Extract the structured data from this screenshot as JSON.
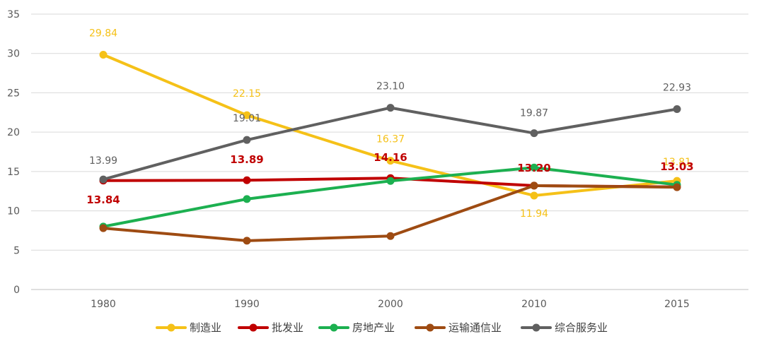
{
  "chart_data": {
    "type": "line",
    "title": "",
    "xlabel": "",
    "ylabel": "",
    "categories": [
      "1980",
      "1990",
      "2000",
      "2010",
      "2015"
    ],
    "ylim": [
      0,
      35
    ],
    "yticks": [
      0,
      5,
      10,
      15,
      20,
      25,
      30,
      35
    ],
    "grid": true,
    "legend_position": "bottom",
    "series": [
      {
        "name": "制造业",
        "color": "#F5C118",
        "values": [
          29.84,
          22.15,
          16.37,
          11.94,
          13.81
        ],
        "labels": [
          "29.84",
          "22.15",
          "16.37",
          "11.94",
          "13.81"
        ],
        "label_indices": [
          0,
          1,
          2,
          3,
          4
        ],
        "label_bold": false
      },
      {
        "name": "批发业",
        "color": "#C00000",
        "values": [
          13.84,
          13.89,
          14.16,
          13.2,
          13.03
        ],
        "labels": [
          "13.84",
          "13.89",
          "14.16",
          "13.20",
          "13.03"
        ],
        "label_indices": [
          0,
          1,
          2,
          3,
          4
        ],
        "label_bold": true
      },
      {
        "name": "房地产业",
        "color": "#1CB050",
        "values": [
          8.0,
          11.5,
          13.8,
          15.5,
          13.3
        ],
        "labels": [],
        "label_indices": [],
        "label_bold": false
      },
      {
        "name": "运输通信业",
        "color": "#9E4B12",
        "values": [
          7.8,
          6.2,
          6.8,
          13.2,
          13.0
        ],
        "labels": [],
        "label_indices": [],
        "label_bold": false
      },
      {
        "name": "综合服务业",
        "color": "#606060",
        "values": [
          13.99,
          19.01,
          23.1,
          19.87,
          22.93
        ],
        "labels": [
          "13.99",
          "19.01",
          "23.10",
          "19.87",
          "22.93"
        ],
        "label_indices": [
          0,
          1,
          2,
          3,
          4
        ],
        "label_bold": false
      }
    ]
  }
}
